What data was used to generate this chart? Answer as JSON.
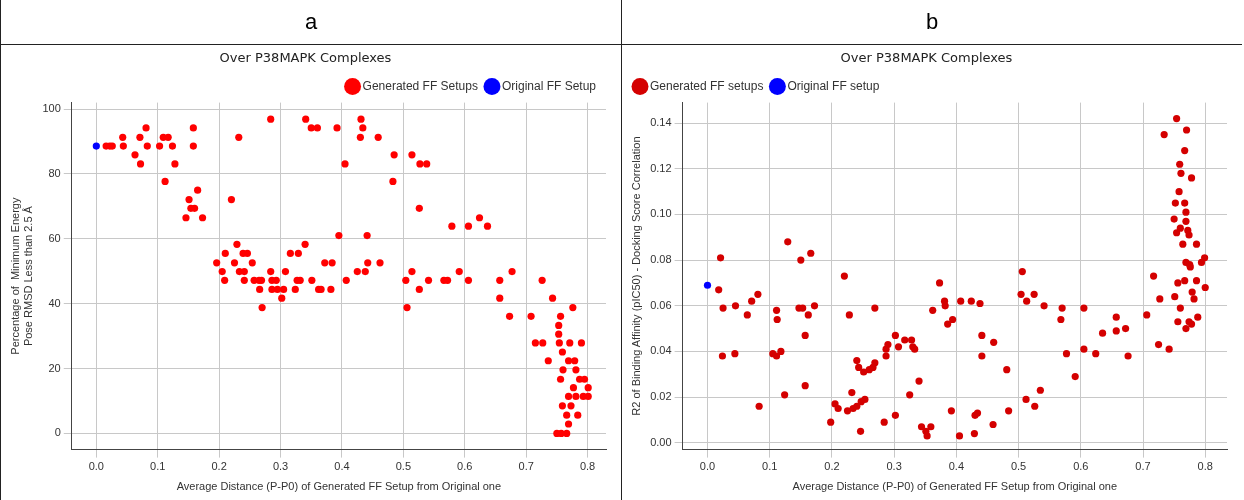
{
  "chart_data": [
    {
      "type": "scatter",
      "title": "Over P38MAPK Complexes",
      "annotations": [
        "a"
      ],
      "xlabel": "Average Distance (P-P0) of Generated FF Setup from Original one",
      "ylabel": "Percentage of  Minimum Energy\nPose RMSD Less than 2.5 Å",
      "xlim": [
        -0.04,
        0.83
      ],
      "ylim": [
        -5,
        102
      ],
      "xticks": [
        {
          "value": 0,
          "label": "0.0"
        },
        0.1,
        0.2,
        0.3,
        0.4,
        0.5,
        0.6,
        0.7,
        0.8
      ],
      "yticks": [
        0,
        20,
        40,
        60,
        80,
        100
      ],
      "grid": true,
      "legend": "top right",
      "marker": "circle",
      "series": [
        {
          "name": "Generated FF Setups",
          "color": "#ff0000",
          "x": [
            0.016,
            0.022,
            0.026,
            0.043,
            0.044,
            0.063,
            0.071,
            0.072,
            0.081,
            0.083,
            0.103,
            0.109,
            0.117,
            0.112,
            0.124,
            0.128,
            0.146,
            0.151,
            0.154,
            0.16,
            0.158,
            0.158,
            0.165,
            0.173,
            0.22,
            0.232,
            0.196,
            0.205,
            0.21,
            0.209,
            0.225,
            0.229,
            0.233,
            0.241,
            0.239,
            0.246,
            0.241,
            0.254,
            0.257,
            0.265,
            0.269,
            0.266,
            0.27,
            0.284,
            0.286,
            0.293,
            0.286,
            0.295,
            0.284,
            0.302,
            0.305,
            0.308,
            0.316,
            0.329,
            0.324,
            0.327,
            0.332,
            0.34,
            0.341,
            0.35,
            0.36,
            0.351,
            0.366,
            0.392,
            0.431,
            0.434,
            0.43,
            0.459,
            0.405,
            0.485,
            0.514,
            0.527,
            0.538,
            0.483,
            0.526,
            0.579,
            0.606,
            0.637,
            0.624,
            0.395,
            0.441,
            0.372,
            0.384,
            0.442,
            0.462,
            0.425,
            0.438,
            0.362,
            0.382,
            0.407,
            0.504,
            0.514,
            0.526,
            0.506,
            0.541,
            0.566,
            0.572,
            0.591,
            0.606,
            0.657,
            0.677,
            0.657,
            0.673,
            0.708,
            0.726,
            0.743,
            0.776,
            0.756,
            0.753,
            0.753,
            0.715,
            0.727,
            0.754,
            0.771,
            0.79,
            0.759,
            0.736,
            0.769,
            0.779,
            0.76,
            0.781,
            0.756,
            0.787,
            0.795,
            0.777,
            0.801,
            0.769,
            0.781,
            0.793,
            0.801,
            0.759,
            0.773,
            0.766,
            0.784,
            0.769,
            0.75,
            0.757,
            0.766
          ],
          "values": [
            88.6,
            88.6,
            88.6,
            91.3,
            88.6,
            85.9,
            91.3,
            83.1,
            94.2,
            88.6,
            88.6,
            91.3,
            91.3,
            77.7,
            88.6,
            83.1,
            66.5,
            72.1,
            69.4,
            69.4,
            94.2,
            88.6,
            75,
            66.5,
            72.1,
            91.3,
            52.6,
            49.9,
            55.5,
            47.2,
            52.6,
            58.3,
            49.9,
            49.9,
            55.5,
            55.5,
            47.2,
            52.6,
            47.2,
            47.2,
            47.2,
            44.4,
            38.8,
            49.9,
            47.2,
            47.2,
            44.4,
            44.4,
            96.9,
            41.7,
            44.4,
            49.9,
            55.5,
            55.5,
            44.4,
            47.2,
            47.2,
            58.3,
            96.9,
            94.2,
            94.2,
            47.2,
            44.4,
            94.2,
            96.9,
            94.2,
            91.3,
            91.3,
            83.1,
            85.9,
            85.9,
            83.1,
            83.1,
            77.7,
            69.4,
            63.9,
            63.9,
            63.9,
            66.5,
            61,
            61,
            52.6,
            52.6,
            52.6,
            52.6,
            49.9,
            49.9,
            44.4,
            44.4,
            47.2,
            47.2,
            49.9,
            44.4,
            38.8,
            47.2,
            47.2,
            47.2,
            49.9,
            47.2,
            47.2,
            49.9,
            41.7,
            36.1,
            36.1,
            47.2,
            41.7,
            38.8,
            36.1,
            33.3,
            30.6,
            27.9,
            27.9,
            27.9,
            27.9,
            27.9,
            25.1,
            22.4,
            22.4,
            22.4,
            19.6,
            19.6,
            16.7,
            16.7,
            16.7,
            14.1,
            14.1,
            11.4,
            11.4,
            11.4,
            11.4,
            8.5,
            8.5,
            5.6,
            5.6,
            2.9,
            0,
            0,
            0
          ]
        },
        {
          "name": "Original FF Setup",
          "color": "#0000ff",
          "x": [
            0
          ],
          "values": [
            88.6
          ]
        }
      ]
    },
    {
      "type": "scatter",
      "title": "Over P38MAPK Complexes",
      "annotations": [
        "b"
      ],
      "xlabel": "Average Distance (P-P0) of Generated FF Setup from Original one",
      "ylabel": "R2 of Binding Affinity (pIC50) - Docking Score Correlation",
      "xlim": [
        -0.04,
        0.835
      ],
      "ylim": [
        -0.003,
        0.149
      ],
      "xticks": [
        {
          "value": 0,
          "label": "0.0"
        },
        0.1,
        0.2,
        0.3,
        0.4,
        0.5,
        0.6,
        0.7,
        0.8
      ],
      "yticks": [
        {
          "value": 0,
          "label": "0.00"
        },
        {
          "value": 0.02,
          "label": "0.02"
        },
        {
          "value": 0.04,
          "label": "0.04"
        },
        {
          "value": 0.06,
          "label": "0.06"
        },
        {
          "value": 0.08,
          "label": "0.08"
        },
        {
          "value": 0.1,
          "label": "0.10"
        },
        {
          "value": 0.12,
          "label": "0.12"
        },
        {
          "value": 0.14,
          "label": "0.14"
        }
      ],
      "grid": true,
      "legend": "top left",
      "marker": "circle",
      "series": [
        {
          "name": "Generated FF setups",
          "color": "#d40000",
          "x": [
            0.018,
            0.021,
            0.025,
            0.024,
            0.044,
            0.045,
            0.064,
            0.071,
            0.081,
            0.083,
            0.105,
            0.111,
            0.118,
            0.111,
            0.112,
            0.124,
            0.129,
            0.15,
            0.166,
            0.147,
            0.153,
            0.162,
            0.172,
            0.157,
            0.157,
            0.198,
            0.205,
            0.21,
            0.22,
            0.228,
            0.225,
            0.234,
            0.24,
            0.247,
            0.253,
            0.232,
            0.246,
            0.24,
            0.243,
            0.251,
            0.26,
            0.266,
            0.269,
            0.269,
            0.284,
            0.287,
            0.287,
            0.29,
            0.302,
            0.307,
            0.317,
            0.328,
            0.33,
            0.333,
            0.302,
            0.325,
            0.34,
            0.344,
            0.351,
            0.359,
            0.353,
            0.362,
            0.373,
            0.381,
            0.382,
            0.386,
            0.394,
            0.407,
            0.424,
            0.438,
            0.441,
            0.441,
            0.46,
            0.481,
            0.392,
            0.405,
            0.429,
            0.43,
            0.434,
            0.459,
            0.484,
            0.506,
            0.504,
            0.513,
            0.525,
            0.541,
            0.512,
            0.526,
            0.535,
            0.57,
            0.568,
            0.577,
            0.591,
            0.605,
            0.605,
            0.624,
            0.635,
            0.657,
            0.657,
            0.672,
            0.676,
            0.706,
            0.717,
            0.727,
            0.725,
            0.742,
            0.734,
            0.754,
            0.77,
            0.767,
            0.759,
            0.761,
            0.778,
            0.758,
            0.752,
            0.767,
            0.75,
            0.769,
            0.769,
            0.76,
            0.754,
            0.772,
            0.774,
            0.764,
            0.786,
            0.775,
            0.769,
            0.776,
            0.794,
            0.799,
            0.767,
            0.756,
            0.786,
            0.8,
            0.751,
            0.779,
            0.782,
            0.76,
            0.756,
            0.788,
            0.774,
            0.778,
            0.769
          ],
          "values": [
            0.067,
            0.081,
            0.059,
            0.038,
            0.039,
            0.06,
            0.056,
            0.062,
            0.065,
            0.016,
            0.039,
            0.038,
            0.04,
            0.058,
            0.054,
            0.021,
            0.088,
            0.08,
            0.083,
            0.059,
            0.059,
            0.056,
            0.06,
            0.047,
            0.025,
            0.009,
            0.017,
            0.015,
            0.073,
            0.056,
            0.014,
            0.015,
            0.016,
            0.018,
            0.019,
            0.022,
            0.005,
            0.036,
            0.033,
            0.031,
            0.032,
            0.033,
            0.035,
            0.059,
            0.009,
            0.038,
            0.041,
            0.043,
            0.047,
            0.042,
            0.045,
            0.045,
            0.042,
            0.041,
            0.012,
            0.021,
            0.027,
            0.007,
            0.005,
            0.007,
            0.003,
            0.058,
            0.07,
            0.062,
            0.06,
            0.052,
            0.054,
            0.062,
            0.062,
            0.061,
            0.047,
            0.038,
            0.044,
            0.032,
            0.014,
            0.003,
            0.004,
            0.012,
            0.013,
            0.008,
            0.014,
            0.075,
            0.065,
            0.062,
            0.065,
            0.06,
            0.019,
            0.016,
            0.023,
            0.059,
            0.054,
            0.039,
            0.029,
            0.059,
            0.041,
            0.039,
            0.048,
            0.055,
            0.049,
            0.05,
            0.038,
            0.056,
            0.073,
            0.063,
            0.043,
            0.041,
            0.135,
            0.142,
            0.137,
            0.128,
            0.122,
            0.118,
            0.116,
            0.11,
            0.105,
            0.105,
            0.098,
            0.101,
            0.097,
            0.094,
            0.092,
            0.093,
            0.091,
            0.087,
            0.087,
            0.078,
            0.079,
            0.077,
            0.079,
            0.081,
            0.071,
            0.07,
            0.071,
            0.068,
            0.064,
            0.066,
            0.063,
            0.059,
            0.053,
            0.055,
            0.053,
            0.052,
            0.05
          ]
        },
        {
          "name": "Original FF setup",
          "color": "#0000ff",
          "x": [
            0
          ],
          "values": [
            0.069
          ]
        }
      ]
    }
  ]
}
